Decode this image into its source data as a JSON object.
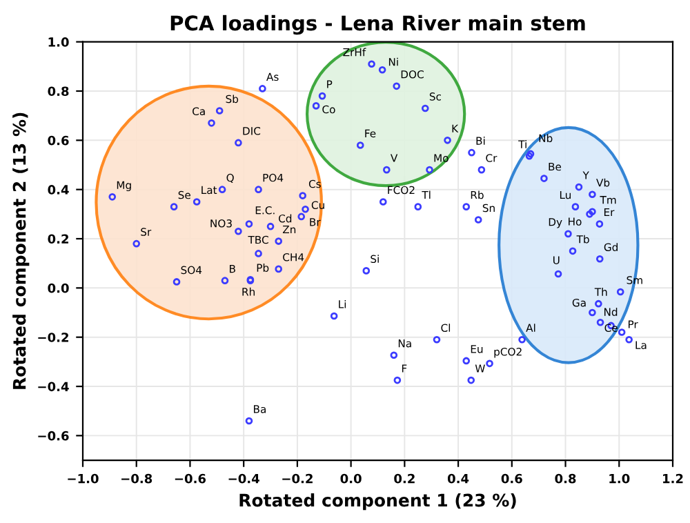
{
  "chart_data": {
    "type": "scatter",
    "title": "PCA loadings - Lena River main stem",
    "xlabel": "Rotated component 1 (23 %)",
    "ylabel": "Rotated component 2 (13 %)",
    "xlim": [
      -1.0,
      1.2
    ],
    "xticks": [
      {
        "value": -1.0,
        "label": "−1.0"
      },
      {
        "value": -0.8,
        "label": "−0.8"
      },
      {
        "value": -0.6,
        "label": "−0.6"
      },
      {
        "value": -0.4,
        "label": "−0.4"
      },
      {
        "value": -0.2,
        "label": "−0.2"
      },
      {
        "value": 0.0,
        "label": "0.0"
      },
      {
        "value": 0.2,
        "label": "0.2"
      },
      {
        "value": 0.4,
        "label": "0.4"
      },
      {
        "value": 0.6,
        "label": "0.6"
      },
      {
        "value": 0.8,
        "label": "0.8"
      },
      {
        "value": 1.0,
        "label": "1.0"
      },
      {
        "value": 1.2,
        "label": "1.2"
      }
    ],
    "ylim": [
      -0.7,
      1.0
    ],
    "yticks": [
      {
        "value": -0.6,
        "label": "−0.6"
      },
      {
        "value": -0.4,
        "label": "−0.4"
      },
      {
        "value": -0.2,
        "label": "−0.2"
      },
      {
        "value": 0.0,
        "label": "0.0"
      },
      {
        "value": 0.2,
        "label": "0.2"
      },
      {
        "value": 0.4,
        "label": "0.4"
      },
      {
        "value": 0.6,
        "label": "0.6"
      },
      {
        "value": 0.8,
        "label": "0.8"
      },
      {
        "value": 1.0,
        "label": "1.0"
      }
    ],
    "grid": true,
    "marker": "circle",
    "series": [
      {
        "color": "#3b3bff",
        "x": [
          -0.33,
          -0.49,
          -0.52,
          -0.42,
          -0.89,
          -0.66,
          -0.575,
          -0.48,
          -0.345,
          -0.18,
          -0.17,
          -0.185,
          -0.38,
          -0.3,
          -0.42,
          -0.27,
          -0.8,
          -0.345,
          -0.27,
          -0.65,
          -0.47,
          -0.375,
          -0.375,
          0.077,
          0.117,
          0.17,
          -0.107,
          -0.13,
          0.277,
          0.36,
          0.035,
          0.45,
          0.133,
          0.293,
          0.487,
          0.12,
          0.25,
          0.43,
          0.475,
          0.665,
          0.67,
          0.72,
          0.85,
          0.9,
          0.837,
          0.9,
          0.89,
          0.927,
          0.81,
          0.827,
          0.928,
          0.773,
          1.005,
          0.923,
          0.9,
          0.93,
          0.97,
          1.01,
          1.037,
          0.638,
          0.057,
          -0.063,
          0.32,
          0.16,
          0.43,
          0.517,
          0.173,
          0.448,
          -0.38
        ],
        "values": [
          0.81,
          0.72,
          0.67,
          0.59,
          0.37,
          0.33,
          0.35,
          0.4,
          0.4,
          0.375,
          0.32,
          0.29,
          0.26,
          0.25,
          0.23,
          0.19,
          0.18,
          0.14,
          0.077,
          0.025,
          0.03,
          0.034,
          0.03,
          0.91,
          0.886,
          0.82,
          0.78,
          0.74,
          0.73,
          0.6,
          0.58,
          0.55,
          0.48,
          0.48,
          0.48,
          0.35,
          0.33,
          0.33,
          0.277,
          0.536,
          0.545,
          0.445,
          0.41,
          0.38,
          0.33,
          0.31,
          0.3,
          0.26,
          0.22,
          0.15,
          0.118,
          0.057,
          -0.016,
          -0.064,
          -0.1,
          -0.14,
          -0.153,
          -0.18,
          -0.21,
          -0.21,
          0.07,
          -0.114,
          -0.21,
          -0.273,
          -0.296,
          -0.307,
          -0.375,
          -0.375,
          -0.54
        ]
      }
    ],
    "annotations": [
      {
        "text": "As",
        "x": -0.33,
        "y": 0.81
      },
      {
        "text": "Sb",
        "x": -0.49,
        "y": 0.72
      },
      {
        "text": "Ca",
        "x": -0.52,
        "y": 0.67
      },
      {
        "text": "DIC",
        "x": -0.42,
        "y": 0.59
      },
      {
        "text": "Mg",
        "x": -0.89,
        "y": 0.37
      },
      {
        "text": "Se",
        "x": -0.66,
        "y": 0.33
      },
      {
        "text": "Lat",
        "x": -0.575,
        "y": 0.35
      },
      {
        "text": "Q",
        "x": -0.48,
        "y": 0.4
      },
      {
        "text": "PO4",
        "x": -0.345,
        "y": 0.4
      },
      {
        "text": "Cs",
        "x": -0.18,
        "y": 0.375
      },
      {
        "text": "Cu",
        "x": -0.17,
        "y": 0.32
      },
      {
        "text": "Br",
        "x": -0.185,
        "y": 0.29
      },
      {
        "text": "E.C.",
        "x": -0.38,
        "y": 0.26
      },
      {
        "text": "Cd",
        "x": -0.3,
        "y": 0.25
      },
      {
        "text": "NO3",
        "x": -0.42,
        "y": 0.23
      },
      {
        "text": "Zn",
        "x": -0.27,
        "y": 0.19
      },
      {
        "text": "Sr",
        "x": -0.8,
        "y": 0.18
      },
      {
        "text": "TBC",
        "x": -0.345,
        "y": 0.14
      },
      {
        "text": "CH4",
        "x": -0.27,
        "y": 0.077
      },
      {
        "text": "SO4",
        "x": -0.65,
        "y": 0.025
      },
      {
        "text": "B",
        "x": -0.47,
        "y": 0.03
      },
      {
        "text": "Pb",
        "x": -0.375,
        "y": 0.034
      },
      {
        "text": "Rh",
        "x": -0.375,
        "y": 0.03
      },
      {
        "text": "ZrHf",
        "x": 0.077,
        "y": 0.91
      },
      {
        "text": "Ni",
        "x": 0.117,
        "y": 0.886
      },
      {
        "text": "DOC",
        "x": 0.17,
        "y": 0.82
      },
      {
        "text": "P",
        "x": -0.107,
        "y": 0.78
      },
      {
        "text": "Co",
        "x": -0.13,
        "y": 0.74
      },
      {
        "text": "Sc",
        "x": 0.277,
        "y": 0.73
      },
      {
        "text": "K",
        "x": 0.36,
        "y": 0.6
      },
      {
        "text": "Fe",
        "x": 0.035,
        "y": 0.58
      },
      {
        "text": "Bi",
        "x": 0.45,
        "y": 0.55
      },
      {
        "text": "V",
        "x": 0.133,
        "y": 0.48
      },
      {
        "text": "Mo",
        "x": 0.293,
        "y": 0.48
      },
      {
        "text": "Cr",
        "x": 0.487,
        "y": 0.48
      },
      {
        "text": "FCO2",
        "x": 0.12,
        "y": 0.35
      },
      {
        "text": "Tl",
        "x": 0.25,
        "y": 0.33
      },
      {
        "text": "Rb",
        "x": 0.43,
        "y": 0.33
      },
      {
        "text": "Sn",
        "x": 0.475,
        "y": 0.277
      },
      {
        "text": "Ti",
        "x": 0.665,
        "y": 0.536
      },
      {
        "text": "Nb",
        "x": 0.67,
        "y": 0.545
      },
      {
        "text": "Be",
        "x": 0.72,
        "y": 0.445
      },
      {
        "text": "Y",
        "x": 0.85,
        "y": 0.41
      },
      {
        "text": "Vb",
        "x": 0.9,
        "y": 0.38
      },
      {
        "text": "Lu",
        "x": 0.837,
        "y": 0.33
      },
      {
        "text": "Tm",
        "x": 0.9,
        "y": 0.31
      },
      {
        "text": "Ho",
        "x": 0.89,
        "y": 0.3
      },
      {
        "text": "Er",
        "x": 0.927,
        "y": 0.26
      },
      {
        "text": "Dy",
        "x": 0.81,
        "y": 0.22
      },
      {
        "text": "Tb",
        "x": 0.827,
        "y": 0.15
      },
      {
        "text": "Gd",
        "x": 0.928,
        "y": 0.118
      },
      {
        "text": "U",
        "x": 0.773,
        "y": 0.057
      },
      {
        "text": "Sm",
        "x": 1.005,
        "y": -0.016
      },
      {
        "text": "Th",
        "x": 0.923,
        "y": -0.064
      },
      {
        "text": "Ga",
        "x": 0.9,
        "y": -0.1
      },
      {
        "text": "Ce",
        "x": 0.93,
        "y": -0.14
      },
      {
        "text": "Nd",
        "x": 0.97,
        "y": -0.153
      },
      {
        "text": "Pr",
        "x": 1.01,
        "y": -0.18
      },
      {
        "text": "La",
        "x": 1.037,
        "y": -0.21
      },
      {
        "text": "Al",
        "x": 0.638,
        "y": -0.21
      },
      {
        "text": "Si",
        "x": 0.057,
        "y": 0.07
      },
      {
        "text": "Li",
        "x": -0.063,
        "y": -0.114
      },
      {
        "text": "Cl",
        "x": 0.32,
        "y": -0.21
      },
      {
        "text": "Na",
        "x": 0.16,
        "y": -0.273
      },
      {
        "text": "Eu",
        "x": 0.43,
        "y": -0.296
      },
      {
        "text": "pCO2",
        "x": 0.517,
        "y": -0.307
      },
      {
        "text": "F",
        "x": 0.173,
        "y": -0.375
      },
      {
        "text": "W",
        "x": 0.448,
        "y": -0.375
      },
      {
        "text": "Ba",
        "x": -0.38,
        "y": -0.54
      }
    ]
  }
}
